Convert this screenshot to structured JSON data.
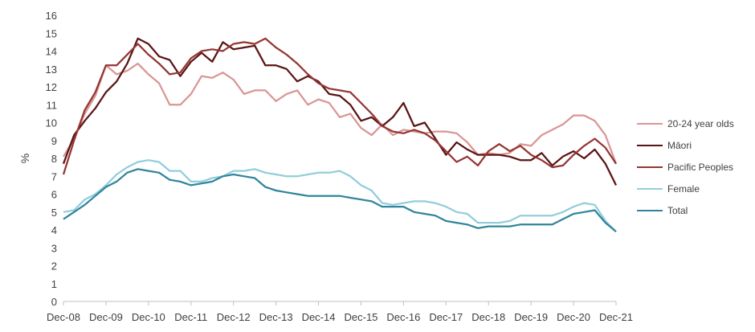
{
  "chart_data": {
    "type": "line",
    "ylabel": "%",
    "xlabel": "",
    "title": "",
    "ylim": [
      0,
      16
    ],
    "y_ticks": [
      0,
      1,
      2,
      3,
      4,
      5,
      6,
      7,
      8,
      9,
      10,
      11,
      12,
      13,
      14,
      15,
      16
    ],
    "x_tick_labels": [
      "Dec-08",
      "Dec-09",
      "Dec-10",
      "Dec-11",
      "Dec-12",
      "Dec-13",
      "Dec-14",
      "Dec-15",
      "Dec-16",
      "Dec-17",
      "Dec-18",
      "Dec-19",
      "Dec-20",
      "Dec-21"
    ],
    "x_tick_positions": [
      0,
      4,
      8,
      12,
      16,
      20,
      24,
      28,
      32,
      36,
      40,
      44,
      48,
      52
    ],
    "grid": false,
    "legend_position": "right",
    "series": [
      {
        "name": "20-24 year olds",
        "color": "#d99694",
        "values": [
          8.1,
          9.1,
          10.5,
          11.5,
          13.2,
          12.7,
          12.9,
          13.3,
          12.7,
          12.2,
          11.0,
          11.0,
          11.6,
          12.6,
          12.5,
          12.8,
          12.4,
          11.6,
          11.8,
          11.8,
          11.2,
          11.6,
          11.8,
          11.0,
          11.3,
          11.1,
          10.3,
          10.5,
          9.7,
          9.3,
          9.9,
          9.3,
          9.6,
          9.5,
          9.4,
          9.5,
          9.5,
          9.4,
          8.9,
          8.2,
          8.3,
          8.2,
          8.3,
          8.8,
          8.7,
          9.3,
          9.6,
          9.9,
          10.4,
          10.4,
          10.1,
          9.3,
          7.7
        ]
      },
      {
        "name": "Māori",
        "color": "#5a1414",
        "values": [
          7.7,
          9.3,
          10.1,
          10.8,
          11.7,
          12.3,
          13.3,
          14.7,
          14.4,
          13.7,
          13.5,
          12.6,
          13.4,
          13.9,
          13.4,
          14.5,
          14.1,
          14.2,
          14.3,
          13.2,
          13.2,
          13.0,
          12.3,
          12.6,
          12.3,
          11.6,
          11.5,
          11.0,
          10.1,
          10.3,
          9.8,
          10.3,
          11.1,
          9.8,
          10.0,
          9.1,
          8.2,
          8.9,
          8.5,
          8.2,
          8.2,
          8.2,
          8.1,
          7.9,
          7.9,
          8.3,
          7.6,
          8.1,
          8.4,
          8.0,
          8.5,
          7.7,
          6.5
        ]
      },
      {
        "name": "Pacific Peoples",
        "color": "#943634",
        "values": [
          7.1,
          9.0,
          10.7,
          11.7,
          13.2,
          13.2,
          13.8,
          14.4,
          13.8,
          13.3,
          12.7,
          12.8,
          13.6,
          14.0,
          14.1,
          14.0,
          14.4,
          14.5,
          14.4,
          14.7,
          14.2,
          13.8,
          13.3,
          12.7,
          12.2,
          11.9,
          11.8,
          11.7,
          11.1,
          10.5,
          9.8,
          9.5,
          9.4,
          9.6,
          9.4,
          9.0,
          8.4,
          7.8,
          8.1,
          7.6,
          8.4,
          8.8,
          8.4,
          8.7,
          8.2,
          7.9,
          7.5,
          7.6,
          8.2,
          8.7,
          9.1,
          8.6,
          7.7
        ]
      },
      {
        "name": "Female",
        "color": "#92cddc",
        "values": [
          5.0,
          5.1,
          5.7,
          6.0,
          6.5,
          7.1,
          7.5,
          7.8,
          7.9,
          7.8,
          7.3,
          7.3,
          6.7,
          6.7,
          6.9,
          7.0,
          7.3,
          7.3,
          7.4,
          7.2,
          7.1,
          7.0,
          7.0,
          7.1,
          7.2,
          7.2,
          7.3,
          7.0,
          6.5,
          6.2,
          5.5,
          5.4,
          5.5,
          5.6,
          5.6,
          5.5,
          5.3,
          5.0,
          4.9,
          4.4,
          4.4,
          4.4,
          4.5,
          4.8,
          4.8,
          4.8,
          4.8,
          5.0,
          5.3,
          5.5,
          5.4,
          4.5,
          3.9
        ]
      },
      {
        "name": "Total",
        "color": "#31849b",
        "values": [
          4.6,
          5.0,
          5.4,
          5.9,
          6.4,
          6.7,
          7.2,
          7.4,
          7.3,
          7.2,
          6.8,
          6.7,
          6.5,
          6.6,
          6.7,
          7.0,
          7.1,
          7.0,
          6.9,
          6.4,
          6.2,
          6.1,
          6.0,
          5.9,
          5.9,
          5.9,
          5.9,
          5.8,
          5.7,
          5.6,
          5.3,
          5.3,
          5.3,
          5.0,
          4.9,
          4.8,
          4.5,
          4.4,
          4.3,
          4.1,
          4.2,
          4.2,
          4.2,
          4.3,
          4.3,
          4.3,
          4.3,
          4.6,
          4.9,
          5.0,
          5.1,
          4.4,
          3.9
        ]
      }
    ]
  }
}
